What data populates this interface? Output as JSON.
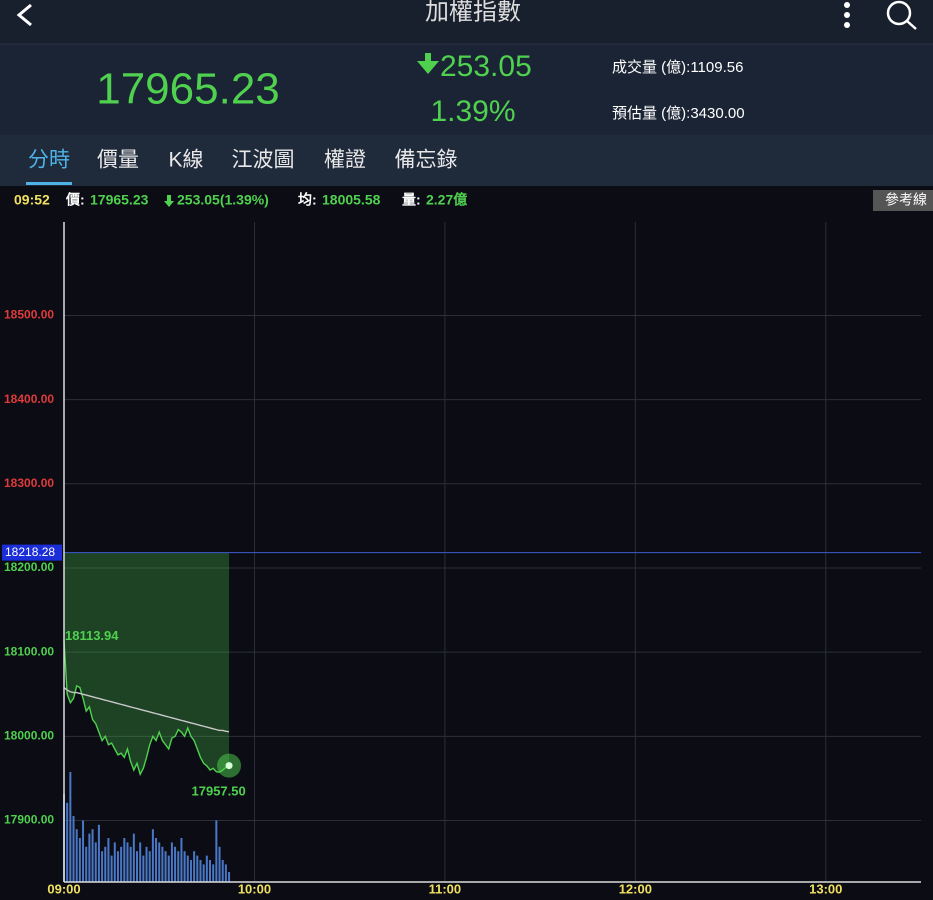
{
  "header": {
    "title": "加權指數"
  },
  "quote": {
    "price": "17965.23",
    "change": "253.05",
    "percent": "1.39%",
    "volume_label": "成交量 (億):",
    "volume": "1109.56",
    "estimate_label": "預估量 (億):",
    "estimate": "3430.00"
  },
  "tabs": [
    "分時",
    "價量",
    "K線",
    "江波圖",
    "權證",
    "備忘錄"
  ],
  "info_bar": {
    "time": "09:52",
    "price_label": "價:",
    "price": "17965.23",
    "change": "253.05(1.39%)",
    "avg_label": "均:",
    "avg": "18005.58",
    "volume_label": "量:",
    "volume": "2.27億",
    "button": "參考線"
  },
  "chart_data": {
    "type": "line",
    "x": [
      "09:00",
      "09:01",
      "09:02",
      "09:03",
      "09:04",
      "09:05",
      "09:06",
      "09:07",
      "09:08",
      "09:09",
      "09:10",
      "09:11",
      "09:12",
      "09:13",
      "09:14",
      "09:15",
      "09:16",
      "09:17",
      "09:18",
      "09:19",
      "09:20",
      "09:21",
      "09:22",
      "09:23",
      "09:24",
      "09:25",
      "09:26",
      "09:27",
      "09:28",
      "09:29",
      "09:30",
      "09:31",
      "09:32",
      "09:33",
      "09:34",
      "09:35",
      "09:36",
      "09:37",
      "09:38",
      "09:39",
      "09:40",
      "09:41",
      "09:42",
      "09:43",
      "09:44",
      "09:45",
      "09:46",
      "09:47",
      "09:48",
      "09:49",
      "09:50",
      "09:51",
      "09:52"
    ],
    "series": [
      {
        "color": "#4fd14f",
        "values": [
          18113.94,
          18050,
          18040,
          18045,
          18060,
          18058,
          18045,
          18030,
          18035,
          18020,
          18015,
          18005,
          17995,
          18000,
          17990,
          17992,
          17985,
          17978,
          17980,
          17975,
          17985,
          17970,
          17960,
          17968,
          17955,
          17962,
          17975,
          17990,
          18000,
          17995,
          18005,
          17995,
          17990,
          17985,
          17998,
          18000,
          18008,
          18005,
          18000,
          18010,
          18000,
          17995,
          17985,
          17975,
          17968,
          17965,
          17960,
          17962,
          17958,
          17957.5,
          17960,
          17963,
          17965.23
        ]
      },
      {
        "color": "#c8c8c8",
        "values": [
          18058,
          18055,
          18053,
          18052,
          18052,
          18051,
          18050,
          18049,
          18048,
          18047,
          18046,
          18045,
          18044,
          18043,
          18042,
          18041,
          18040,
          18039,
          18038,
          18037,
          18036,
          18035,
          18034,
          18033,
          18032,
          18031,
          18030,
          18029,
          18028,
          18027,
          18026,
          18025,
          18024,
          18023,
          18022,
          18021,
          18020,
          18019,
          18018,
          18017,
          18016,
          18015,
          18014,
          18013,
          18012,
          18011,
          18010,
          18009,
          18008,
          18007,
          18007,
          18006,
          18005.58
        ]
      },
      {
        "type": "bar",
        "axis": "y2",
        "color": "#4a78c8",
        "values": [
          20,
          18,
          25,
          15,
          12,
          10,
          14,
          8,
          11,
          12,
          9,
          13,
          7,
          8,
          10,
          6,
          9,
          7,
          8,
          10,
          9,
          8,
          11,
          7,
          9,
          6,
          8,
          7,
          12,
          10,
          9,
          8,
          7,
          6,
          9,
          8,
          7,
          10,
          7,
          6,
          5,
          7,
          6,
          5,
          4,
          6,
          5,
          4,
          14,
          8,
          5,
          4,
          2.27
        ]
      }
    ],
    "xlim": [
      "09:00",
      "13:30"
    ],
    "xticks": [
      "09:00",
      "10:00",
      "11:00",
      "12:00",
      "13:00"
    ],
    "ylim": [
      17827,
      18611
    ],
    "yticks": [
      {
        "value": 17900,
        "label": "17900.00"
      },
      {
        "value": 18000,
        "label": "18000.00"
      },
      {
        "value": 18100,
        "label": "18100.00"
      },
      {
        "value": 18200,
        "label": "18200.00"
      },
      {
        "value": 18300,
        "label": "18300.00"
      },
      {
        "value": 18400,
        "label": "18400.00"
      },
      {
        "value": 18500,
        "label": "18500.00"
      }
    ],
    "y2lim": [
      0,
      150
    ],
    "reference": 18218.28,
    "annotations": [
      {
        "x": "09:00",
        "value": 18113.94,
        "label": "18113.94"
      },
      {
        "x": "09:49",
        "value": 17957.5,
        "label": "17957.50"
      }
    ],
    "grid": true
  }
}
